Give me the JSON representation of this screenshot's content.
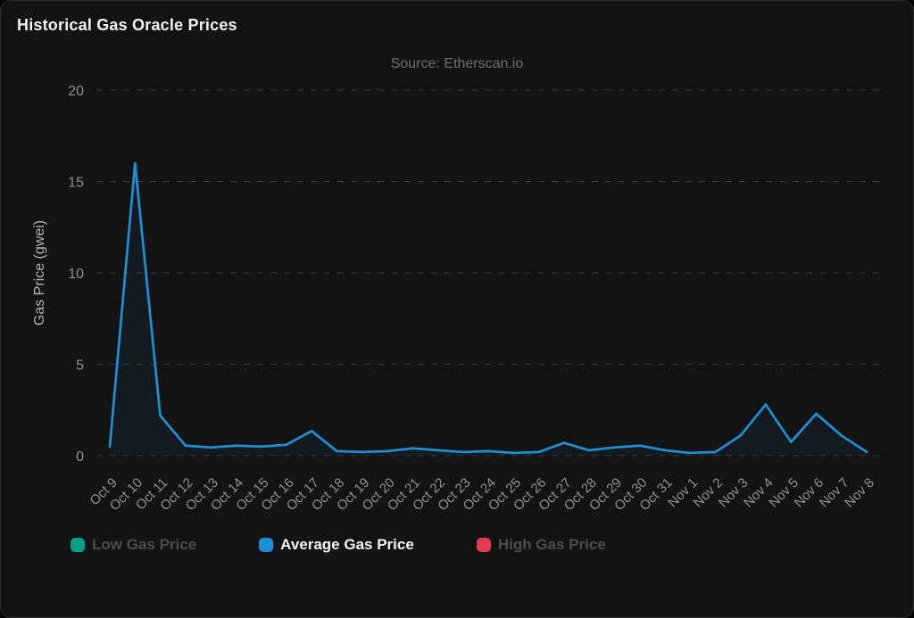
{
  "page": {
    "title": "Historical Gas Oracle Prices",
    "subtitle": "Source: Etherscan.io"
  },
  "colors": {
    "background": "#131313",
    "border": "#2e2e2e",
    "gridline": "#3a3a3a",
    "axis_text": "#929292",
    "axis_title_text": "#b5b5b5",
    "title_text": "#f2f2f2",
    "subtitle_text": "#6f6f6f",
    "low_series": "#00a186",
    "average_series": "#1e8fd5",
    "high_series": "#e23c4f"
  },
  "chart_data": {
    "type": "line",
    "title": "Historical Gas Oracle Prices",
    "subtitle": "Source: Etherscan.io",
    "xlabel": "",
    "ylabel": "Gas Price (gwei)",
    "ylim": [
      0,
      20
    ],
    "yticks": [
      0,
      5,
      10,
      15,
      20
    ],
    "grid": "horizontal-dashed",
    "legend_position": "bottom-left",
    "categories": [
      "Oct 9",
      "Oct 10",
      "Oct 11",
      "Oct 12",
      "Oct 13",
      "Oct 14",
      "Oct 15",
      "Oct 16",
      "Oct 17",
      "Oct 18",
      "Oct 19",
      "Oct 20",
      "Oct 21",
      "Oct 22",
      "Oct 23",
      "Oct 24",
      "Oct 25",
      "Oct 26",
      "Oct 27",
      "Oct 28",
      "Oct 29",
      "Oct 30",
      "Oct 31",
      "Nov 1",
      "Nov 2",
      "Nov 3",
      "Nov 4",
      "Nov 5",
      "Nov 6",
      "Nov 7",
      "Nov 8"
    ],
    "series": [
      {
        "name": "Low Gas Price",
        "color": "#00a186",
        "visible": false
      },
      {
        "name": "Average Gas Price",
        "color": "#1e8fd5",
        "visible": true,
        "values": [
          0.5,
          16,
          2.2,
          0.55,
          0.45,
          0.55,
          0.5,
          0.6,
          1.35,
          0.25,
          0.2,
          0.25,
          0.4,
          0.3,
          0.2,
          0.25,
          0.15,
          0.2,
          0.7,
          0.3,
          0.45,
          0.55,
          0.3,
          0.15,
          0.2,
          1.1,
          2.8,
          0.75,
          2.3,
          1.1,
          0.2
        ]
      },
      {
        "name": "High Gas Price",
        "color": "#e23c4f",
        "visible": false
      }
    ]
  }
}
